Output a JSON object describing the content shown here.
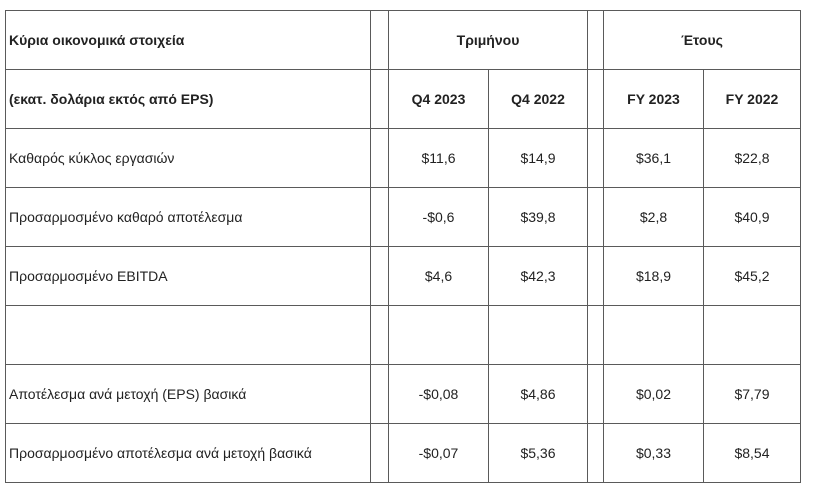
{
  "header": {
    "title": "Κύρια οικονομικά στοιχεία",
    "subtitle": "(εκατ. δολάρια εκτός από EPS)",
    "groups": [
      "Τριμήνου",
      "Έτους"
    ],
    "columns": [
      "Q4 2023",
      "Q4 2022",
      "FY 2023",
      "FY 2022"
    ]
  },
  "sections": [
    [
      {
        "label": "Καθαρός κύκλος εργασιών",
        "values": [
          "$11,6",
          "$14,9",
          "$36,1",
          "$22,8"
        ]
      },
      {
        "label": "Προσαρμοσμένο καθαρό αποτέλεσμα",
        "values": [
          "-$0,6",
          "$39,8",
          "$2,8",
          "$40,9"
        ]
      },
      {
        "label": "Προσαρμοσμένο EBITDA",
        "values": [
          "$4,6",
          "$42,3",
          "$18,9",
          "$45,2"
        ]
      }
    ],
    [
      {
        "label": "Αποτέλεσμα ανά μετοχή (EPS) βασικά",
        "values": [
          "-$0,08",
          "$4,86",
          "$0,02",
          "$7,79"
        ]
      },
      {
        "label": "Προσαρμοσμένο αποτέλεσμα ανά μετοχή βασικά",
        "values": [
          "-$0,07",
          "$5,36",
          "$0,33",
          "$8,54"
        ]
      }
    ]
  ]
}
